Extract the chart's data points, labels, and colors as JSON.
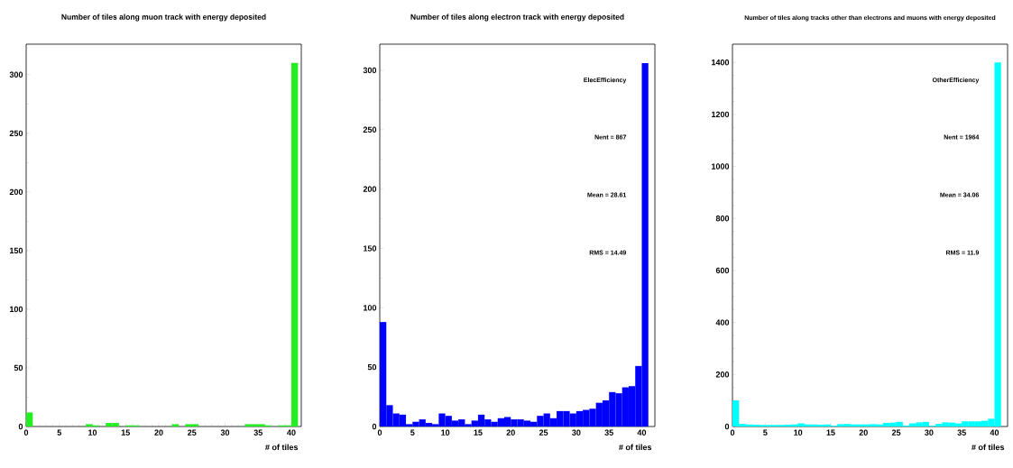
{
  "chart_data": [
    {
      "type": "histogram",
      "title": "Number of tiles along muon track with energy deposited",
      "xlabel": "# of tiles",
      "color": "#22ee22",
      "bins": [
        0,
        1,
        2,
        3,
        4,
        5,
        6,
        7,
        8,
        9,
        10,
        11,
        12,
        13,
        14,
        15,
        16,
        17,
        18,
        19,
        20,
        21,
        22,
        23,
        24,
        25,
        26,
        27,
        28,
        29,
        30,
        31,
        32,
        33,
        34,
        35,
        36,
        37,
        38,
        39,
        40,
        41,
        42
      ],
      "values": [
        12,
        0,
        0,
        0,
        0,
        0,
        0,
        0,
        0,
        2,
        1,
        0,
        3,
        3,
        0,
        1,
        1,
        0,
        0,
        0,
        0,
        0,
        2,
        0,
        2,
        2,
        0,
        0,
        0,
        0,
        0,
        0,
        0,
        2,
        2,
        2,
        1,
        0,
        1,
        1,
        310,
        0
      ],
      "xlim": [
        0,
        41.5
      ],
      "ylim": [
        0,
        326
      ],
      "xticks": [
        0,
        5,
        10,
        15,
        20,
        25,
        30,
        35,
        40
      ],
      "yticks": [
        0,
        50,
        100,
        150,
        200,
        250,
        300
      ]
    },
    {
      "type": "histogram",
      "title": "Number of tiles along electron track with energy deposited",
      "xlabel": "# of tiles",
      "color": "#0000ff",
      "bins": [
        0,
        1,
        2,
        3,
        4,
        5,
        6,
        7,
        8,
        9,
        10,
        11,
        12,
        13,
        14,
        15,
        16,
        17,
        18,
        19,
        20,
        21,
        22,
        23,
        24,
        25,
        26,
        27,
        28,
        29,
        30,
        31,
        32,
        33,
        34,
        35,
        36,
        37,
        38,
        39,
        40,
        41,
        42
      ],
      "values": [
        88,
        18,
        11,
        10,
        2,
        4,
        6,
        3,
        2,
        11,
        9,
        5,
        6,
        2,
        5,
        10,
        6,
        4,
        7,
        8,
        6,
        6,
        5,
        4,
        9,
        11,
        7,
        13,
        13,
        11,
        13,
        14,
        15,
        20,
        22,
        29,
        28,
        33,
        34,
        51,
        306,
        0
      ],
      "xlim": [
        0,
        42
      ],
      "ylim": [
        0,
        322
      ],
      "xticks": [
        0,
        5,
        10,
        15,
        20,
        25,
        30,
        35,
        40
      ],
      "yticks": [
        0,
        50,
        100,
        150,
        200,
        250,
        300
      ],
      "annotations": [
        "ElecEfficiency",
        "Nent = 867",
        "Mean = 28.61",
        "RMS = 14.49"
      ]
    },
    {
      "type": "histogram",
      "title": "Number of tiles along tracks other than electrons and muons with energy deposited",
      "xlabel": "# of tiles",
      "color": "#00ffff",
      "bins": [
        0,
        1,
        2,
        3,
        4,
        5,
        6,
        7,
        8,
        9,
        10,
        11,
        12,
        13,
        14,
        15,
        16,
        17,
        18,
        19,
        20,
        21,
        22,
        23,
        24,
        25,
        26,
        27,
        28,
        29,
        30,
        31,
        32,
        33,
        34,
        35,
        36,
        37,
        38,
        39,
        40,
        41,
        42
      ],
      "values": [
        100,
        10,
        8,
        7,
        6,
        6,
        6,
        6,
        7,
        8,
        12,
        8,
        8,
        7,
        8,
        3,
        9,
        10,
        8,
        8,
        8,
        9,
        8,
        14,
        15,
        18,
        4,
        12,
        16,
        18,
        3,
        10,
        16,
        15,
        12,
        20,
        20,
        20,
        22,
        30,
        1400,
        0
      ],
      "xlim": [
        0,
        42
      ],
      "ylim": [
        0,
        1470
      ],
      "xticks": [
        0,
        5,
        10,
        15,
        20,
        25,
        30,
        35,
        40
      ],
      "yticks": [
        0,
        200,
        400,
        600,
        800,
        1000,
        1200,
        1400
      ],
      "annotations": [
        "OtherEfficiency",
        "Nent = 1964",
        "Mean = 34.06",
        "RMS = 11.9"
      ]
    }
  ]
}
